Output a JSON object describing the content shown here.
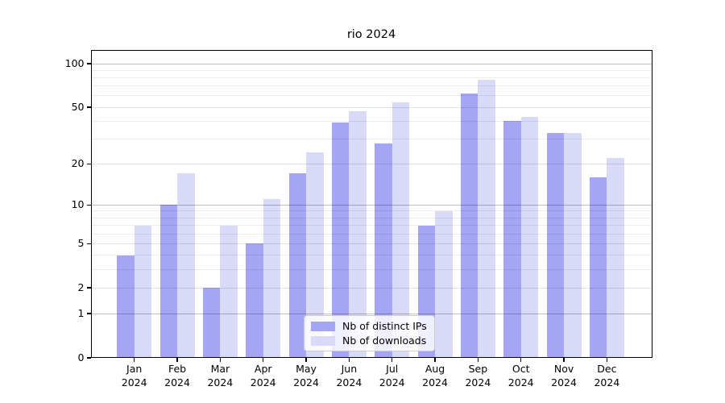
{
  "title": "rio 2024",
  "colors": {
    "ips_bar": "#a5a5f5",
    "downloads_bar": "#d9d9f8",
    "grid_minor": "rgba(0,0,0,0.075)",
    "grid_labeled": "rgba(0,0,0,0.11)",
    "grid_major": "rgba(0,0,0,0.25)",
    "axis": "#000000"
  },
  "legend": {
    "items": [
      {
        "label": "Nb of distinct IPs",
        "series": "ips"
      },
      {
        "label": "Nb of downloads",
        "series": "downloads"
      }
    ]
  },
  "chart_data": {
    "type": "bar",
    "title": "rio 2024",
    "categories": [
      "Jan 2024",
      "Feb 2024",
      "Mar 2024",
      "Apr 2024",
      "May 2024",
      "Jun 2024",
      "Jul 2024",
      "Aug 2024",
      "Sep 2024",
      "Oct 2024",
      "Nov 2024",
      "Dec 2024"
    ],
    "series": [
      {
        "name": "Nb of distinct IPs",
        "values": [
          4,
          10,
          2,
          5,
          17,
          39,
          28,
          7,
          62,
          40,
          33,
          16
        ]
      },
      {
        "name": "Nb of downloads",
        "values": [
          7,
          17,
          7,
          11,
          24,
          47,
          54,
          9,
          77,
          43,
          33,
          22
        ]
      }
    ],
    "xlabel": "",
    "ylabel": "",
    "yscale": "log(value+1)",
    "ylim": [
      0,
      115
    ],
    "yticks": [
      100,
      50,
      20,
      10,
      5,
      2,
      1,
      0
    ],
    "minor_gridlines": [
      3,
      4,
      6,
      7,
      8,
      9,
      30,
      40,
      60,
      70,
      80,
      90
    ],
    "major_gridlines": [
      1,
      10,
      100
    ],
    "grid": true,
    "legend_position": "lower center"
  }
}
